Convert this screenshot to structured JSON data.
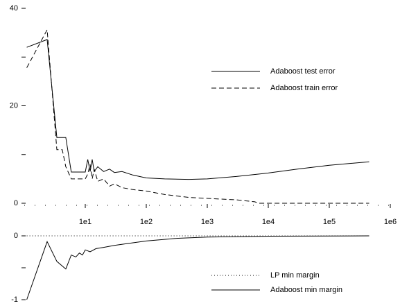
{
  "chart_data": [
    {
      "type": "line",
      "xscale": "log",
      "xlim": [
        1,
        1000000
      ],
      "ylim": [
        0,
        40
      ],
      "xticks": [
        {
          "value": 10,
          "label": "1e1"
        },
        {
          "value": 100,
          "label": "1e2"
        },
        {
          "value": 1000,
          "label": "1e3"
        },
        {
          "value": 10000,
          "label": "1e4"
        },
        {
          "value": 100000,
          "label": "1e5"
        },
        {
          "value": 1000000,
          "label": "1e6"
        }
      ],
      "yticks": [
        0,
        20,
        40
      ],
      "yminor_ticks": [
        10,
        30
      ],
      "series": [
        {
          "name": "Adaboost test error",
          "color": "#000000",
          "line_style": "solid",
          "x": [
            1.1,
            2.37,
            3.42,
            4.8,
            5.9,
            10,
            11,
            12,
            13,
            14,
            16,
            20,
            25,
            30,
            40,
            60,
            100,
            200,
            500,
            1000,
            3000,
            10000,
            30000,
            100000,
            450000
          ],
          "values": [
            32,
            33.6,
            13.5,
            13.5,
            6.4,
            6.4,
            9,
            6.5,
            9,
            6.5,
            7.5,
            6.5,
            7,
            6.3,
            6.5,
            5.8,
            5.2,
            5.0,
            4.9,
            5.0,
            5.5,
            6.2,
            7.0,
            7.8,
            8.5
          ]
        },
        {
          "name": "Adaboost train error",
          "color": "#000000",
          "line_style": "dashed",
          "x": [
            1.1,
            2.37,
            3.42,
            4.2,
            4.8,
            5.9,
            10,
            11,
            12,
            13,
            14,
            16,
            20,
            25,
            30,
            40,
            60,
            100,
            200,
            500,
            1000,
            3000,
            6000,
            7000,
            450000
          ],
          "values": [
            27.8,
            35.6,
            11,
            11,
            7.5,
            5,
            5,
            6,
            8,
            5,
            7,
            4.5,
            5,
            3.5,
            4,
            3.2,
            2.8,
            2.5,
            1.8,
            1.2,
            1.0,
            0.7,
            0.3,
            0,
            0
          ]
        }
      ]
    },
    {
      "type": "line",
      "xscale": "log",
      "xlim": [
        1,
        1000000
      ],
      "ylim": [
        -1,
        0
      ],
      "yticks": [
        -1,
        0
      ],
      "yminor_ticks": [
        -0.5
      ],
      "series": [
        {
          "name": "LP min margin",
          "color": "#000000",
          "line_style": "dotted",
          "x": [
            1.1,
            450000
          ],
          "values": [
            0,
            0
          ]
        },
        {
          "name": "Adaboost min margin",
          "color": "#000000",
          "line_style": "solid",
          "x": [
            1.1,
            2.37,
            3.42,
            4.8,
            5.9,
            7,
            8,
            9,
            10,
            12,
            15,
            20,
            30,
            50,
            100,
            300,
            1000,
            10000,
            450000
          ],
          "values": [
            -1,
            -0.09,
            -0.4,
            -0.52,
            -0.3,
            -0.33,
            -0.27,
            -0.3,
            -0.22,
            -0.25,
            -0.2,
            -0.18,
            -0.15,
            -0.12,
            -0.08,
            -0.04,
            -0.02,
            -0.005,
            0
          ]
        }
      ]
    }
  ]
}
